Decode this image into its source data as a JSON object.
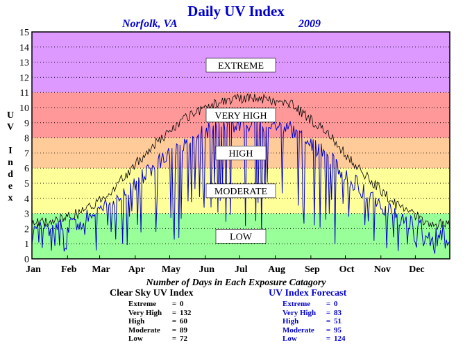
{
  "title": "Daily UV Index",
  "location": "Norfolk, VA",
  "year": "2009",
  "colors": {
    "extreme": "#dd99ff",
    "very_high": "#ff9999",
    "high": "#ffcc99",
    "moderate": "#ffff99",
    "low": "#99ff99",
    "clear_sky_line": "#000000",
    "forecast_line": "#0000cc"
  },
  "chart_data": {
    "type": "line",
    "ylabel": "UV Index",
    "ylim": [
      0,
      15
    ],
    "yticks": [
      0,
      1,
      2,
      3,
      4,
      5,
      6,
      7,
      8,
      9,
      10,
      11,
      12,
      13,
      14,
      15
    ],
    "grid": true,
    "x_unit": "day of year",
    "xlim": [
      1,
      365
    ],
    "month_labels": [
      "Jan",
      "Feb",
      "Mar",
      "Apr",
      "May",
      "Jun",
      "Jul",
      "Aug",
      "Sep",
      "Oct",
      "Nov",
      "Dec"
    ],
    "bands": [
      {
        "label": "LOW",
        "from": 0,
        "to": 3
      },
      {
        "label": "MODERATE",
        "from": 3,
        "to": 6
      },
      {
        "label": "HIGH",
        "from": 6,
        "to": 8
      },
      {
        "label": "VERY HIGH",
        "from": 8,
        "to": 11
      },
      {
        "label": "EXTREME",
        "from": 11,
        "to": 15
      }
    ],
    "series": [
      {
        "name": "Clear Sky UV Index",
        "monthly_peak": [
          2.4,
          3.1,
          4.8,
          7.4,
          9.3,
          10.4,
          10.7,
          10.2,
          8.3,
          5.8,
          3.5,
          2.3
        ]
      },
      {
        "name": "UV Index Forecast",
        "monthly_typical": [
          1.9,
          2.5,
          3.9,
          6.0,
          7.8,
          8.8,
          9.0,
          8.5,
          6.8,
          4.6,
          2.8,
          1.8
        ],
        "noise_seed": 2009
      }
    ]
  },
  "footer": {
    "subtitle": "Number of Days in Each Exposure Catagory",
    "clear": {
      "heading": "Clear Sky UV Index",
      "rows": [
        {
          "label": "Extreme",
          "value": "0"
        },
        {
          "label": "Very High",
          "value": "132"
        },
        {
          "label": "High",
          "value": "60"
        },
        {
          "label": "Moderate",
          "value": "89"
        },
        {
          "label": "Low",
          "value": "72"
        }
      ]
    },
    "forecast": {
      "heading": "UV Index Forecast",
      "rows": [
        {
          "label": "Extreme",
          "value": "0"
        },
        {
          "label": "Very High",
          "value": "83"
        },
        {
          "label": "High",
          "value": "51"
        },
        {
          "label": "Moderate",
          "value": "95"
        },
        {
          "label": "Low",
          "value": "124"
        }
      ]
    }
  }
}
